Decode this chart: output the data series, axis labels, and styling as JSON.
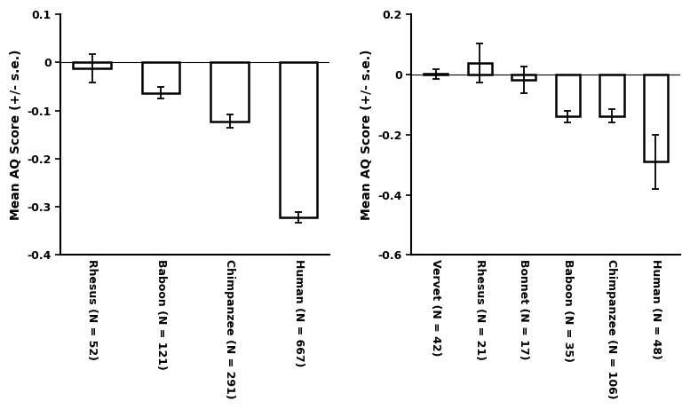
{
  "left": {
    "categories": [
      "Rhesus (N = 52)",
      "Baboon (N = 121)",
      "Chimpanzee (N = 291)",
      "Human (N = 667)"
    ],
    "values": [
      -0.012,
      -0.063,
      -0.122,
      -0.322
    ],
    "errors": [
      0.03,
      0.012,
      0.014,
      0.011
    ],
    "ylim": [
      -0.4,
      0.1
    ],
    "yticks": [
      0.1,
      0.0,
      -0.1,
      -0.2,
      -0.3,
      -0.4
    ],
    "ylabel": "Mean AQ Score (+/- s.e.)"
  },
  "right": {
    "categories": [
      "Vervet (N = 42)",
      "Rhesus (N = 21)",
      "Bonnet (N = 17)",
      "Baboon (N = 35)",
      "Chimpanzee (N = 106)",
      "Human (N = 48)"
    ],
    "values": [
      0.002,
      0.038,
      -0.018,
      -0.14,
      -0.138,
      -0.29
    ],
    "errors": [
      0.016,
      0.065,
      0.045,
      0.02,
      0.022,
      0.09
    ],
    "ylim": [
      -0.6,
      0.2
    ],
    "yticks": [
      0.2,
      0.0,
      -0.2,
      -0.4,
      -0.6
    ],
    "ylabel": "Mean AQ Score (+/- s.e.)"
  },
  "bar_color": "white",
  "bar_edgecolor": "black",
  "bar_linewidth": 1.8,
  "error_color": "black",
  "error_capsize": 3,
  "error_linewidth": 1.3,
  "tick_fontsize": 9,
  "label_fontsize": 10,
  "bar_width": 0.55,
  "xlabel_rotation": -90,
  "xlabel_ha": "center",
  "xlabel_fontsize": 9,
  "xlabel_fontweight": "bold"
}
